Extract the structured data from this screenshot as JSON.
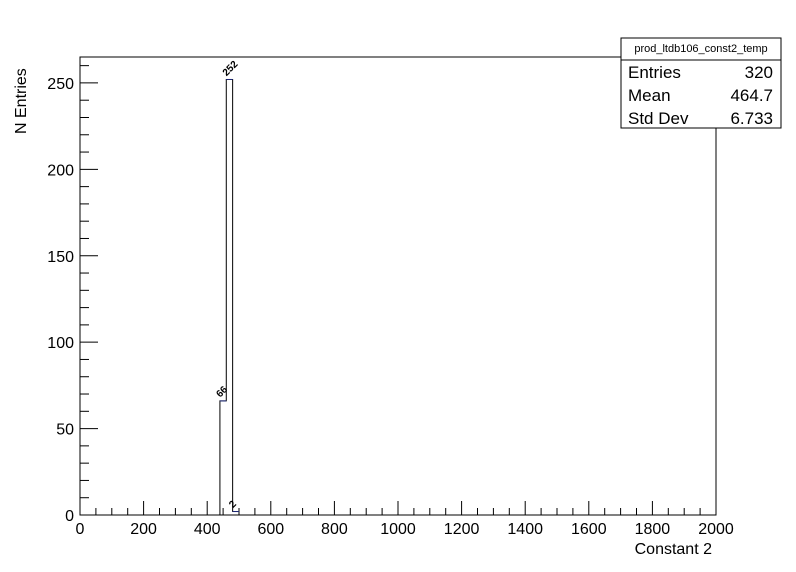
{
  "chart_data": {
    "type": "bar",
    "histogram": true,
    "title": "",
    "xlabel": "Constant 2",
    "ylabel": "N Entries",
    "xlim": [
      0,
      2000
    ],
    "ylim": [
      0,
      265
    ],
    "x_ticks": [
      "0",
      "200",
      "400",
      "600",
      "800",
      "1000",
      "1200",
      "1400",
      "1600",
      "1800",
      "2000"
    ],
    "y_ticks": [
      "0",
      "50",
      "100",
      "150",
      "200",
      "250"
    ],
    "bin_width": 20,
    "bins": [
      {
        "x_low": 440,
        "x_high": 460,
        "value": 66,
        "label": "66"
      },
      {
        "x_low": 460,
        "x_high": 480,
        "value": 252,
        "label": "252"
      },
      {
        "x_low": 480,
        "x_high": 500,
        "value": 2,
        "label": "2"
      }
    ],
    "line_color": "#1f2a7a",
    "grid": false,
    "legend_position": "top-right"
  },
  "stats_box": {
    "title": "prod_ltdb106_const2_temp",
    "rows": [
      {
        "label": "Entries",
        "value": "320"
      },
      {
        "label": "Mean",
        "value": "464.7"
      },
      {
        "label": "Std Dev",
        "value": "6.733"
      }
    ]
  }
}
